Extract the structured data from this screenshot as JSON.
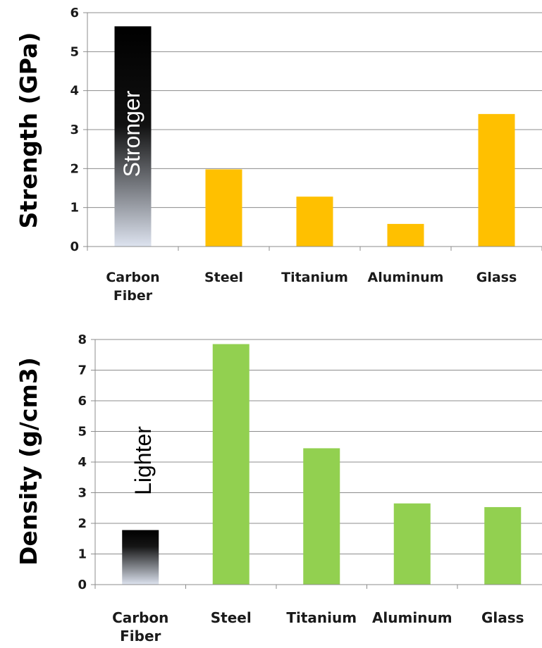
{
  "chart_data": [
    {
      "type": "bar",
      "ylabel": "Strength (GPa)",
      "categories": [
        "Carbon Fiber",
        "Steel",
        "Titanium",
        "Aluminum",
        "Glass"
      ],
      "category_lines": [
        [
          "Carbon",
          "Fiber"
        ],
        [
          "Steel"
        ],
        [
          "Titanium"
        ],
        [
          "Aluminum"
        ],
        [
          "Glass"
        ]
      ],
      "values": [
        5.65,
        1.98,
        1.28,
        0.58,
        3.4
      ],
      "ylim": [
        0,
        6
      ],
      "yticks": [
        0,
        1,
        2,
        3,
        4,
        5,
        6
      ],
      "grid": true,
      "colors": {
        "highlight_top": "#000000",
        "highlight_bottom": "#dde3ef",
        "bar": "#ffc000"
      },
      "annotation": "Stronger"
    },
    {
      "type": "bar",
      "ylabel": "Density (g/cm3)",
      "categories": [
        "Carbon Fiber",
        "Steel",
        "Titanium",
        "Aluminum",
        "Glass"
      ],
      "category_lines": [
        [
          "Carbon",
          "Fiber"
        ],
        [
          "Steel"
        ],
        [
          "Titanium"
        ],
        [
          "Aluminum"
        ],
        [
          "Glass"
        ]
      ],
      "values": [
        1.78,
        7.85,
        4.45,
        2.65,
        2.53
      ],
      "ylim": [
        0,
        8
      ],
      "yticks": [
        0,
        1,
        2,
        3,
        4,
        5,
        6,
        7,
        8
      ],
      "grid": true,
      "colors": {
        "highlight_top": "#000000",
        "highlight_bottom": "#dde3ef",
        "bar": "#92d050"
      },
      "annotation": "Lighter"
    }
  ]
}
